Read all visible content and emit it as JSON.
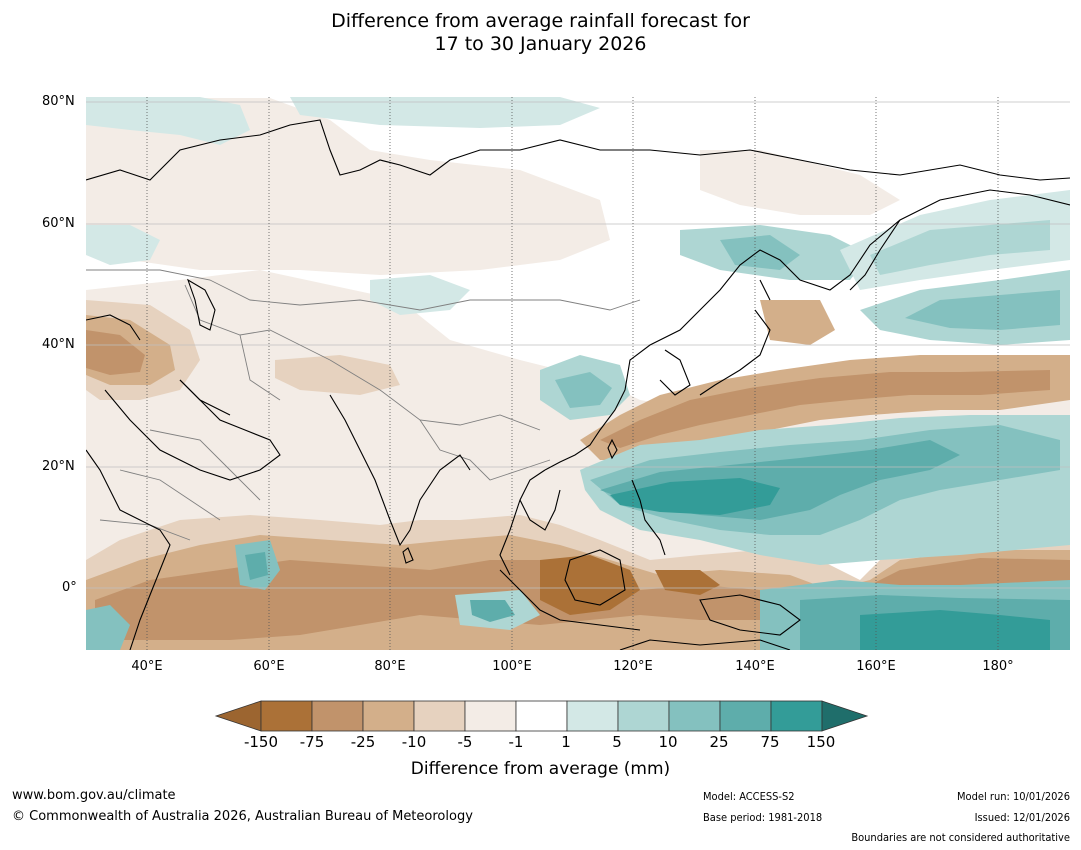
{
  "title_line1": "Difference from average rainfall forecast for",
  "title_line2": "17 to 30 January 2026",
  "lat_labels": [
    "80°N",
    "60°N",
    "40°N",
    "20°N",
    "0°"
  ],
  "lon_labels": [
    "40°E",
    "60°E",
    "80°E",
    "100°E",
    "120°E",
    "140°E",
    "160°E",
    "180°"
  ],
  "colorbar": {
    "ticks": [
      "-150",
      "-75",
      "-25",
      "-10",
      "-5",
      "-1",
      "1",
      "5",
      "10",
      "25",
      "75",
      "150"
    ],
    "colors": [
      "#9c6530",
      "#ab7137",
      "#c1936b",
      "#d3af8a",
      "#e6d2bf",
      "#f3ece6",
      "#ffffff",
      "#d3e8e6",
      "#aed6d3",
      "#84c1bf",
      "#5eadab",
      "#339c98",
      "#1f6e6b"
    ],
    "title": "Difference from average (mm)"
  },
  "footer": {
    "url": "www.bom.gov.au/climate",
    "copyright": "© Commonwealth of Australia 2026, Australian Bureau of Meteorology",
    "model": "Model: ACCESS-S2",
    "base_period": "Base period: 1981-2018",
    "model_run": "Model run: 10/01/2026",
    "issued": "Issued: 12/01/2026",
    "disclaimer": "Boundaries are not considered authoritative"
  },
  "colors": {
    "coast": "#000000",
    "borders": "#808080",
    "grid": "#bfbfbf"
  }
}
